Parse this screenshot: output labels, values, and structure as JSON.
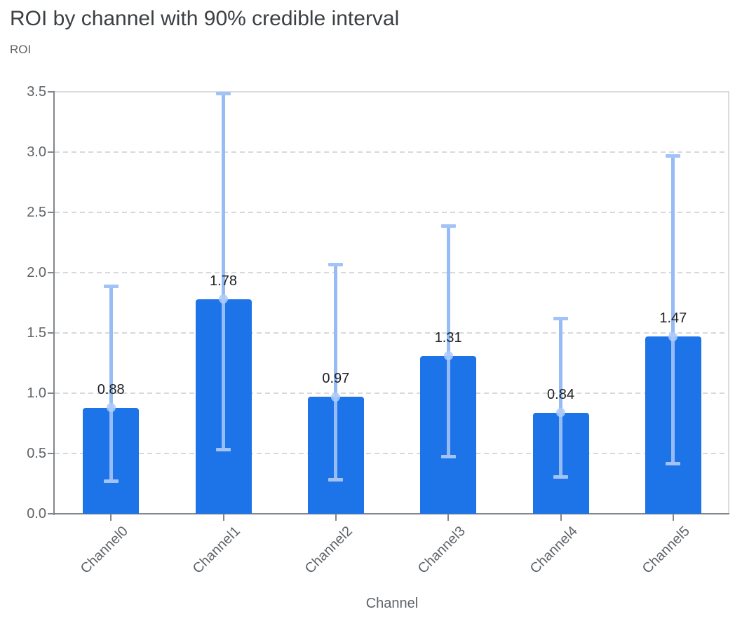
{
  "chart_data": {
    "type": "bar",
    "title": "ROI by channel with 90% credible interval",
    "ylabel": "ROI",
    "xlabel": "Channel",
    "categories": [
      "Channel0",
      "Channel1",
      "Channel2",
      "Channel3",
      "Channel4",
      "Channel5"
    ],
    "values": [
      0.88,
      1.78,
      0.97,
      1.31,
      0.84,
      1.47
    ],
    "bar_labels": [
      "0.88",
      "1.78",
      "0.97",
      "1.31",
      "0.84",
      "1.47"
    ],
    "error_low": [
      0.27,
      0.53,
      0.28,
      0.47,
      0.3,
      0.41
    ],
    "error_high": [
      1.89,
      3.49,
      2.07,
      2.39,
      1.62,
      2.97
    ],
    "error_kind": "90% credible interval",
    "ylim": [
      0,
      3.5
    ],
    "ytick_labels": [
      "0.0",
      "0.5",
      "1.0",
      "1.5",
      "2.0",
      "2.5",
      "3.0",
      "3.5"
    ],
    "grid": "horizontal-dashed",
    "legend": "none",
    "colors": {
      "bar": "#1d73e8",
      "error_bar": "#97bbf5",
      "error_cap": "#a3c3f7",
      "marker": "#aecbfa",
      "grid": "#d6d9dd",
      "axis": "#80868b",
      "plot_border": "#dadce0",
      "title_text": "#3c4043",
      "tick_text": "#5f6368",
      "value_label_text": "#202124"
    }
  }
}
